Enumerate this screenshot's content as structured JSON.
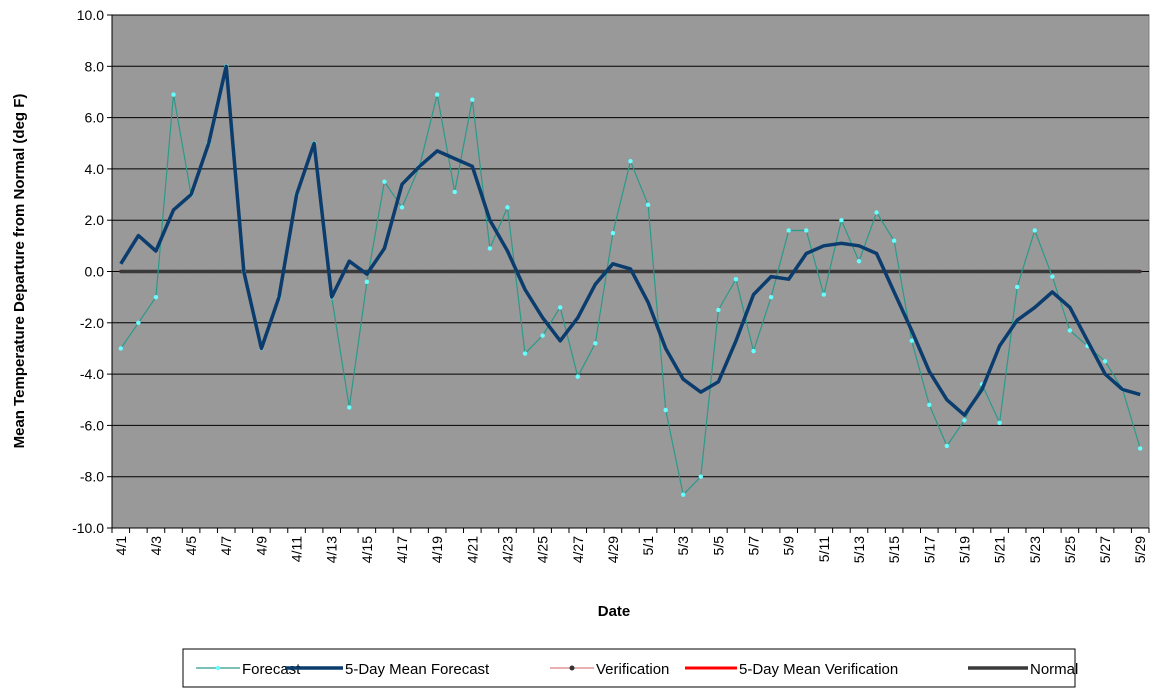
{
  "chart_data": {
    "type": "line",
    "xlabel": "Date",
    "ylabel": "Mean Temperature Departure from Normal (deg F)",
    "ylim": [
      -10,
      10
    ],
    "y_ticks": [
      "-10.0",
      "-8.0",
      "-6.0",
      "-4.0",
      "-2.0",
      "0.0",
      "2.0",
      "4.0",
      "6.0",
      "8.0",
      "10.0"
    ],
    "x_tick_labels": [
      "4/1",
      "4/3",
      "4/5",
      "4/7",
      "4/9",
      "4/11",
      "4/13",
      "4/15",
      "4/17",
      "4/19",
      "4/21",
      "4/23",
      "4/25",
      "4/27",
      "4/29",
      "5/1",
      "5/3",
      "5/5",
      "5/7",
      "5/9",
      "5/11",
      "5/13",
      "5/15",
      "5/17",
      "5/19",
      "5/21",
      "5/23",
      "5/25",
      "5/27",
      "5/29"
    ],
    "grid": "horizontal",
    "plot_background": "#999999",
    "legend_position": "bottom",
    "series": [
      {
        "name": "Forecast",
        "color": "#2a9a8a",
        "marker_color": "#66ffff",
        "values": [
          -3.0,
          -2.0,
          -1.0,
          6.9,
          3.0,
          5.0,
          8.0,
          0.0,
          -3.0,
          -1.0,
          3.0,
          5.0,
          -1.0,
          -5.3,
          -0.4,
          3.5,
          2.5,
          4.1,
          6.9,
          3.1,
          6.7,
          0.9,
          2.5,
          -3.2,
          -2.5,
          -1.4,
          -4.1,
          -2.8,
          1.5,
          4.3,
          2.6,
          -5.4,
          -8.7,
          -8.0,
          -1.5,
          -0.3,
          -3.1,
          -1.0,
          1.6,
          1.6,
          -0.9,
          2.0,
          0.4,
          2.3,
          1.2,
          -2.7,
          -5.2,
          -6.8,
          -5.8,
          -4.4,
          -5.9,
          -0.6,
          1.6,
          -0.2,
          -2.3,
          -2.9,
          -3.5,
          -4.6,
          -6.9
        ]
      },
      {
        "name": "5-Day Mean Forecast",
        "color": "#0b3c6e",
        "values": [
          0.3,
          1.4,
          0.8,
          2.4,
          3.0,
          5.0,
          8.0,
          0.0,
          -3.0,
          -1.0,
          3.0,
          5.0,
          -1.0,
          0.4,
          -0.1,
          0.9,
          3.4,
          4.1,
          4.7,
          4.4,
          4.1,
          2.0,
          0.8,
          -0.7,
          -1.8,
          -2.7,
          -1.8,
          -0.5,
          0.3,
          0.1,
          -1.2,
          -3.0,
          -4.2,
          -4.7,
          -4.3,
          -2.7,
          -0.9,
          -0.2,
          -0.3,
          0.7,
          1.0,
          1.1,
          1.0,
          0.7,
          -0.8,
          -2.3,
          -3.9,
          -5.0,
          -5.6,
          -4.6,
          -2.9,
          -1.9,
          -1.4,
          -0.8,
          -1.4,
          -2.7,
          -4.0,
          -4.6,
          -4.8
        ]
      },
      {
        "name": "Verification",
        "color": "#d06060",
        "marker_color": "#333333",
        "values": [
          0,
          0,
          0,
          0,
          0,
          0,
          0,
          0,
          0,
          0,
          0,
          0,
          0,
          0,
          0,
          0,
          0,
          0,
          0,
          0,
          0,
          0,
          0,
          0,
          0,
          0,
          0,
          0,
          0,
          0,
          0,
          0,
          0,
          0,
          0,
          0,
          0,
          0,
          0,
          0,
          0,
          0,
          0,
          0,
          0,
          0,
          0,
          0,
          0,
          0,
          0,
          0,
          0,
          0,
          0,
          0,
          0,
          0,
          0
        ]
      },
      {
        "name": "5-Day Mean Verification",
        "color": "#ff0000",
        "values": [
          0,
          0,
          0,
          0,
          0,
          0,
          0,
          0,
          0,
          0,
          0,
          0,
          0,
          0,
          0,
          0,
          0,
          0,
          0,
          0,
          0,
          0,
          0,
          0,
          0,
          0,
          0,
          0,
          0,
          0,
          0,
          0,
          0,
          0,
          0,
          0,
          0,
          0,
          0,
          0,
          0,
          0,
          0,
          0,
          0,
          0,
          0,
          0,
          0,
          0,
          0,
          0,
          0,
          0,
          0,
          0,
          0,
          0,
          0
        ]
      },
      {
        "name": "Normal",
        "color": "#3a3a3a",
        "values": [
          0,
          0,
          0,
          0,
          0,
          0,
          0,
          0,
          0,
          0,
          0,
          0,
          0,
          0,
          0,
          0,
          0,
          0,
          0,
          0,
          0,
          0,
          0,
          0,
          0,
          0,
          0,
          0,
          0,
          0,
          0,
          0,
          0,
          0,
          0,
          0,
          0,
          0,
          0,
          0,
          0,
          0,
          0,
          0,
          0,
          0,
          0,
          0,
          0,
          0,
          0,
          0,
          0,
          0,
          0,
          0,
          0,
          0,
          0
        ]
      }
    ]
  }
}
